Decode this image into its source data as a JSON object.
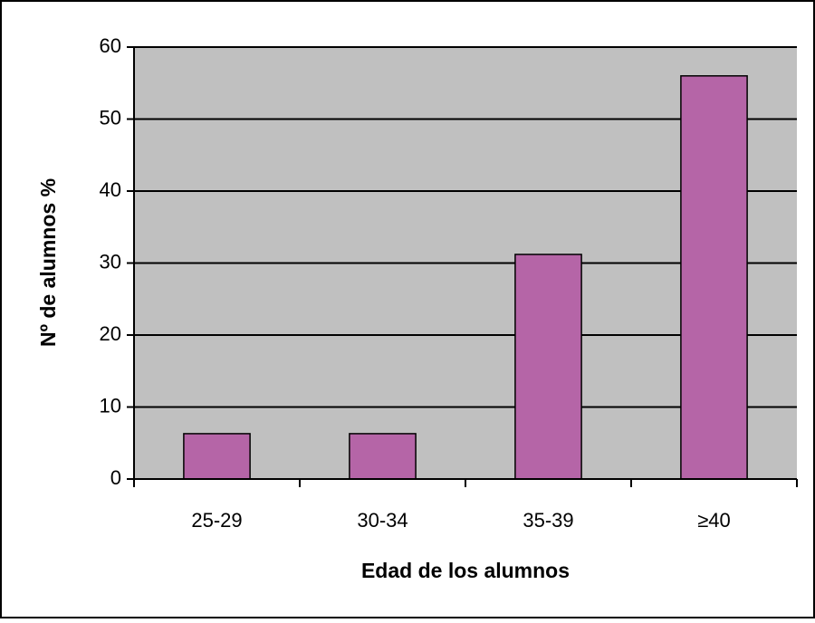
{
  "chart_data": {
    "type": "bar",
    "categories": [
      "25-29",
      "30-34",
      "35-39",
      "≥40"
    ],
    "values": [
      6.3,
      6.3,
      31.2,
      56
    ],
    "color": "#b565a7",
    "xlabel": "Edad de los alumnos",
    "ylabel": "Nº de alumnos %",
    "ylim": [
      0,
      60
    ],
    "yticks": [
      0,
      10,
      20,
      30,
      40,
      50,
      60
    ],
    "grid": true
  }
}
